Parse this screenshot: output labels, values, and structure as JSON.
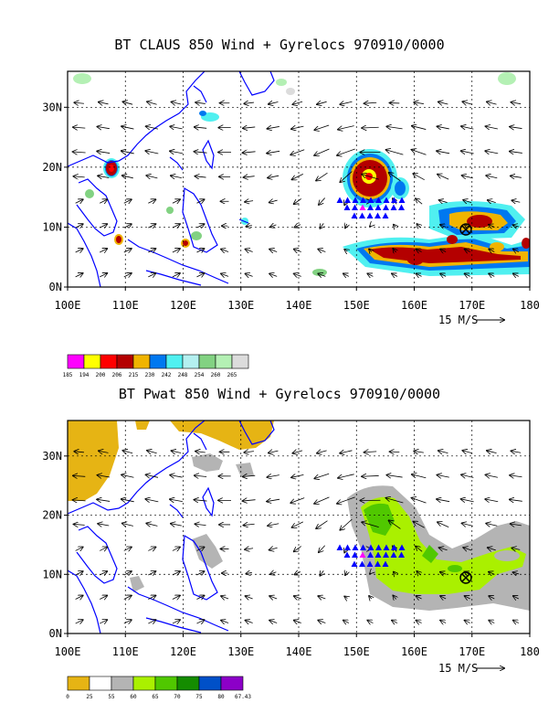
{
  "panels": [
    {
      "id": "top",
      "title": "BT CLAUS 850 Wind + Gyrelocs 970910/0000",
      "x_ticks": [
        "100E",
        "110E",
        "120E",
        "130E",
        "140E",
        "150E",
        "160E",
        "170E",
        "180"
      ],
      "y_ticks": [
        "0N",
        "10N",
        "20N",
        "30N"
      ],
      "reference_vector": "15 M/S",
      "colorbar_levels": [
        "185",
        "194",
        "200",
        "206",
        "215",
        "230",
        "242",
        "248",
        "254",
        "260",
        "265"
      ],
      "colorbar_colors": [
        "#ff00ff",
        "#ffff00",
        "#ff0000",
        "#b40000",
        "#f0b400",
        "#0078f0",
        "#50f0f0",
        "#b4f0f0",
        "#82d282",
        "#b4f0b4",
        "#dcdcdc"
      ]
    },
    {
      "id": "bottom",
      "title": "BT Pwat 850 Wind + Gyrelocs 970910/0000",
      "x_ticks": [
        "100E",
        "110E",
        "120E",
        "130E",
        "140E",
        "150E",
        "160E",
        "170E",
        "180"
      ],
      "y_ticks": [
        "0N",
        "10N",
        "20N",
        "30N"
      ],
      "reference_vector": "15 M/S",
      "colorbar_levels": [
        "0",
        "25",
        "55",
        "60",
        "65",
        "70",
        "75",
        "80",
        "67.43"
      ],
      "colorbar_colors": [
        "#e6b414",
        "#ffffff",
        "#b4b4b4",
        "#aaf000",
        "#50c800",
        "#148c00",
        "#0050c8",
        "#8c00c8"
      ]
    }
  ],
  "map": {
    "lon_range": [
      100,
      180
    ],
    "lat_range": [
      0,
      36
    ],
    "coastline_color": "#0000ff"
  }
}
